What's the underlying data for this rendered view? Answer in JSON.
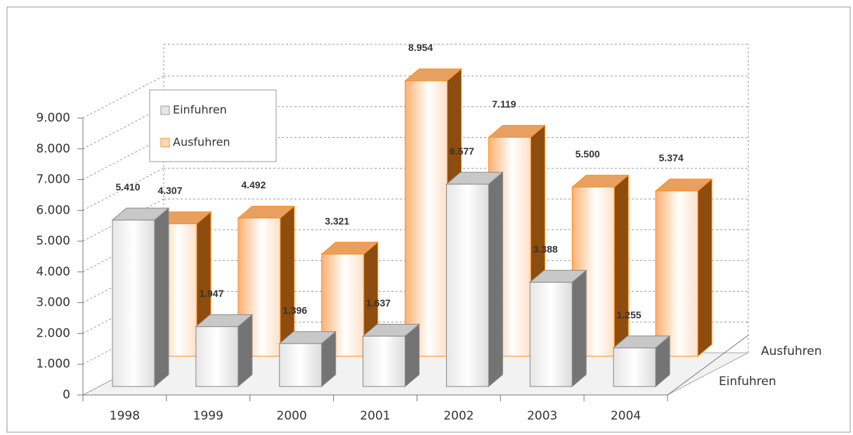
{
  "chart_data": {
    "type": "bar3d",
    "categories": [
      "1998",
      "1999",
      "2000",
      "2001",
      "2002",
      "2003",
      "2004"
    ],
    "series": [
      {
        "name": "Einfuhren",
        "color": "#9a9a9a",
        "values": [
          5410,
          1947,
          1396,
          1637,
          6577,
          3388,
          1255
        ],
        "value_labels": [
          "5.410",
          "1.947",
          "1.396",
          "1.637",
          "6.577",
          "3.388",
          "1.255"
        ]
      },
      {
        "name": "Ausfuhren",
        "color": "#ff8c1a",
        "values": [
          4307,
          4492,
          3321,
          8954,
          7119,
          5500,
          5374
        ],
        "value_labels": [
          "4.307",
          "4.492",
          "3.321",
          "8.954",
          "7.119",
          "5.500",
          "5.374"
        ]
      }
    ],
    "ylim": [
      0,
      9000
    ],
    "yticks": [
      0,
      {
        "value": 1000,
        "label": "1.000"
      },
      {
        "value": 2000,
        "label": "2.000"
      },
      {
        "value": 3000,
        "label": "3.000"
      },
      {
        "value": 4000,
        "label": "4.000"
      },
      {
        "value": 5000,
        "label": "5.000"
      },
      {
        "value": 6000,
        "label": "6.000"
      },
      {
        "value": 7000,
        "label": "7.000"
      },
      {
        "value": 8000,
        "label": "8.000"
      },
      {
        "value": 9000,
        "label": "9.000"
      }
    ],
    "grid": true,
    "legend": "top-left"
  }
}
